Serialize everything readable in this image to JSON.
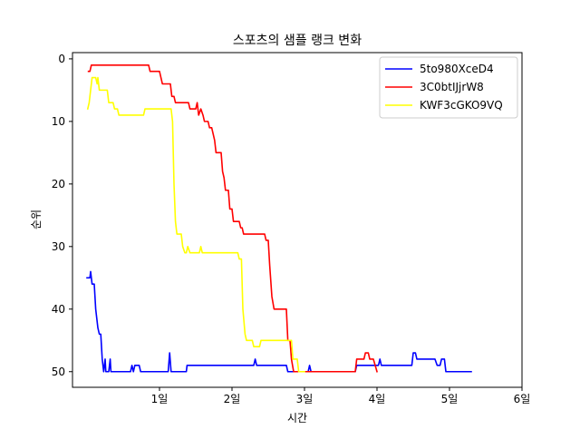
{
  "chart_data": {
    "type": "line",
    "title": "스포츠의 샘플 랭크 변화",
    "xlabel": "시간",
    "ylabel": "순위",
    "x_unit": "일",
    "xlim": [
      -0.2,
      6.0
    ],
    "ylim": [
      52.5,
      -1.0
    ],
    "y_inverted": true,
    "grid": false,
    "legend_position": "top-right",
    "x_ticks": [
      {
        "value": 1,
        "label": "1일"
      },
      {
        "value": 2,
        "label": "2일"
      },
      {
        "value": 3,
        "label": "3일"
      },
      {
        "value": 4,
        "label": "4일"
      },
      {
        "value": 5,
        "label": "5일"
      },
      {
        "value": 6,
        "label": "6일"
      }
    ],
    "y_ticks": [
      {
        "value": 0,
        "label": "0"
      },
      {
        "value": 10,
        "label": "10"
      },
      {
        "value": 20,
        "label": "20"
      },
      {
        "value": 30,
        "label": "30"
      },
      {
        "value": 40,
        "label": "40"
      },
      {
        "value": 50,
        "label": "50"
      }
    ],
    "series": [
      {
        "name": "5to980XceD4",
        "color": "#0000ff",
        "points": [
          [
            0.0,
            35
          ],
          [
            0.04,
            35
          ],
          [
            0.05,
            34
          ],
          [
            0.07,
            36
          ],
          [
            0.1,
            36
          ],
          [
            0.12,
            40
          ],
          [
            0.15,
            43
          ],
          [
            0.17,
            44
          ],
          [
            0.19,
            44
          ],
          [
            0.21,
            48
          ],
          [
            0.23,
            50
          ],
          [
            0.25,
            48
          ],
          [
            0.26,
            50
          ],
          [
            0.3,
            50
          ],
          [
            0.32,
            48
          ],
          [
            0.33,
            50
          ],
          [
            0.6,
            50
          ],
          [
            0.62,
            49
          ],
          [
            0.64,
            50
          ],
          [
            0.66,
            49
          ],
          [
            0.72,
            49
          ],
          [
            0.74,
            50
          ],
          [
            1.12,
            50
          ],
          [
            1.14,
            47
          ],
          [
            1.16,
            50
          ],
          [
            1.37,
            50
          ],
          [
            1.38,
            49
          ],
          [
            2.3,
            49
          ],
          [
            2.32,
            48
          ],
          [
            2.34,
            49
          ],
          [
            2.75,
            49
          ],
          [
            2.77,
            50
          ],
          [
            3.05,
            50
          ],
          [
            3.07,
            49
          ],
          [
            3.09,
            50
          ],
          [
            3.7,
            50
          ],
          [
            3.72,
            49
          ],
          [
            4.02,
            49
          ],
          [
            4.04,
            48
          ],
          [
            4.06,
            49
          ],
          [
            4.48,
            49
          ],
          [
            4.5,
            47
          ],
          [
            4.53,
            47
          ],
          [
            4.55,
            48
          ],
          [
            4.8,
            48
          ],
          [
            4.83,
            49
          ],
          [
            4.87,
            49
          ],
          [
            4.89,
            48
          ],
          [
            4.93,
            48
          ],
          [
            4.95,
            50
          ],
          [
            5.3,
            50
          ]
        ]
      },
      {
        "name": "3C0btIJjrW8",
        "color": "#ff0000",
        "points": [
          [
            0.02,
            2
          ],
          [
            0.04,
            2
          ],
          [
            0.06,
            1
          ],
          [
            0.85,
            1
          ],
          [
            0.87,
            2
          ],
          [
            1.0,
            2
          ],
          [
            1.02,
            3
          ],
          [
            1.04,
            4
          ],
          [
            1.15,
            4
          ],
          [
            1.17,
            6
          ],
          [
            1.2,
            6
          ],
          [
            1.22,
            7
          ],
          [
            1.4,
            7
          ],
          [
            1.42,
            8
          ],
          [
            1.5,
            8
          ],
          [
            1.52,
            7
          ],
          [
            1.54,
            9
          ],
          [
            1.57,
            8
          ],
          [
            1.6,
            9
          ],
          [
            1.62,
            10
          ],
          [
            1.67,
            10
          ],
          [
            1.69,
            11
          ],
          [
            1.72,
            11
          ],
          [
            1.74,
            12
          ],
          [
            1.76,
            13
          ],
          [
            1.78,
            15
          ],
          [
            1.85,
            15
          ],
          [
            1.87,
            18
          ],
          [
            1.89,
            19
          ],
          [
            1.91,
            21
          ],
          [
            1.95,
            21
          ],
          [
            1.97,
            24
          ],
          [
            2.0,
            24
          ],
          [
            2.02,
            26
          ],
          [
            2.1,
            26
          ],
          [
            2.12,
            27
          ],
          [
            2.14,
            27
          ],
          [
            2.16,
            28
          ],
          [
            2.45,
            28
          ],
          [
            2.47,
            29
          ],
          [
            2.5,
            29
          ],
          [
            2.52,
            33
          ],
          [
            2.55,
            38
          ],
          [
            2.58,
            40
          ],
          [
            2.75,
            40
          ],
          [
            2.77,
            45
          ],
          [
            2.8,
            45
          ],
          [
            2.82,
            48
          ],
          [
            2.85,
            50
          ],
          [
            3.7,
            50
          ],
          [
            3.72,
            48
          ],
          [
            3.82,
            48
          ],
          [
            3.84,
            47
          ],
          [
            3.88,
            47
          ],
          [
            3.9,
            48
          ],
          [
            3.95,
            48
          ],
          [
            4.0,
            50
          ]
        ]
      },
      {
        "name": "KWF3cGKO9VQ",
        "color": "#ffff00",
        "points": [
          [
            0.01,
            8
          ],
          [
            0.03,
            7
          ],
          [
            0.05,
            5
          ],
          [
            0.07,
            3
          ],
          [
            0.12,
            3
          ],
          [
            0.14,
            4
          ],
          [
            0.15,
            3
          ],
          [
            0.17,
            5
          ],
          [
            0.28,
            5
          ],
          [
            0.3,
            7
          ],
          [
            0.36,
            7
          ],
          [
            0.38,
            8
          ],
          [
            0.42,
            8
          ],
          [
            0.44,
            9
          ],
          [
            0.58,
            9
          ],
          [
            0.6,
            9
          ],
          [
            0.78,
            9
          ],
          [
            0.8,
            8
          ],
          [
            1.16,
            8
          ],
          [
            1.18,
            10
          ],
          [
            1.2,
            20
          ],
          [
            1.22,
            26
          ],
          [
            1.24,
            28
          ],
          [
            1.3,
            28
          ],
          [
            1.32,
            30
          ],
          [
            1.35,
            31
          ],
          [
            1.37,
            31
          ],
          [
            1.39,
            30
          ],
          [
            1.42,
            31
          ],
          [
            1.55,
            31
          ],
          [
            1.57,
            30
          ],
          [
            1.59,
            31
          ],
          [
            2.08,
            31
          ],
          [
            2.1,
            32
          ],
          [
            2.13,
            32
          ],
          [
            2.15,
            40
          ],
          [
            2.18,
            44
          ],
          [
            2.2,
            45
          ],
          [
            2.28,
            45
          ],
          [
            2.3,
            46
          ],
          [
            2.38,
            46
          ],
          [
            2.4,
            45
          ],
          [
            2.82,
            45
          ],
          [
            2.84,
            48
          ],
          [
            2.9,
            48
          ],
          [
            2.92,
            50
          ],
          [
            3.0,
            50
          ]
        ]
      }
    ]
  }
}
